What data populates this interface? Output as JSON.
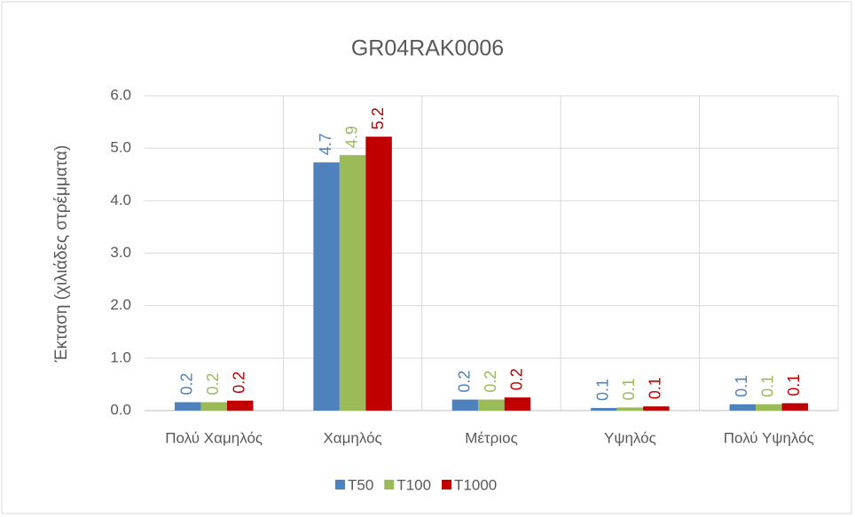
{
  "chart_data": {
    "type": "bar",
    "title": "GR04RAK0006",
    "y_label": "Έκταση (χιλιάδες στρέμματα)",
    "categories": [
      "Πολύ Χαμηλός",
      "Χαμηλός",
      "Μέτριος",
      "Υψηλός",
      "Πολύ Υψηλός"
    ],
    "series": [
      {
        "name": "T50",
        "color": "#4f81bd",
        "values": [
          0.16,
          4.73,
          0.21,
          0.05,
          0.12
        ],
        "value_labels": [
          "0.2",
          "4.7",
          "0.2",
          "0.1",
          "0.1"
        ]
      },
      {
        "name": "T100",
        "color": "#9bbb59",
        "values": [
          0.16,
          4.87,
          0.21,
          0.06,
          0.12
        ],
        "value_labels": [
          "0.2",
          "4.9",
          "0.2",
          "0.1",
          "0.1"
        ]
      },
      {
        "name": "T1000",
        "color": "#c00000",
        "values": [
          0.19,
          5.22,
          0.25,
          0.08,
          0.14
        ],
        "value_labels": [
          "0.2",
          "5.2",
          "0.2",
          "0.1",
          "0.1"
        ]
      }
    ],
    "ylim": [
      0,
      6
    ],
    "yticks": [
      {
        "value": 0,
        "label": "0.0"
      },
      {
        "value": 1,
        "label": "1.0"
      },
      {
        "value": 2,
        "label": "2.0"
      },
      {
        "value": 3,
        "label": "3.0"
      },
      {
        "value": 4,
        "label": "4.0"
      },
      {
        "value": 5,
        "label": "5.0"
      },
      {
        "value": 6,
        "label": "6.0"
      }
    ],
    "grid": true,
    "legend": "bottom"
  }
}
